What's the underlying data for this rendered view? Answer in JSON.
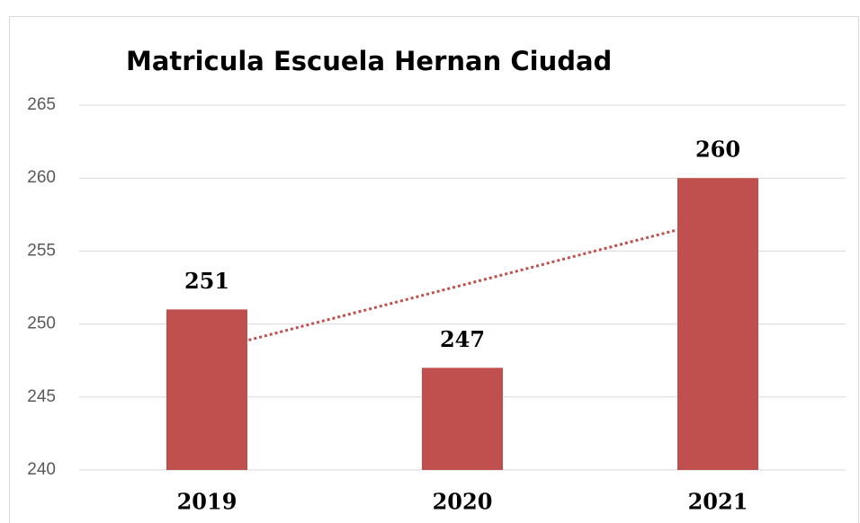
{
  "chart_data": {
    "type": "bar",
    "title": "Matricula Escuela Hernan Ciudad",
    "categories": [
      "2019",
      "2020",
      "2021"
    ],
    "values": [
      251,
      247,
      260
    ],
    "color": "#c0504d",
    "ylim": [
      240,
      265
    ],
    "yticks": [
      240,
      245,
      250,
      255,
      260,
      265
    ],
    "grid": true,
    "trendline": true,
    "trendline_color": "#c0504d"
  }
}
